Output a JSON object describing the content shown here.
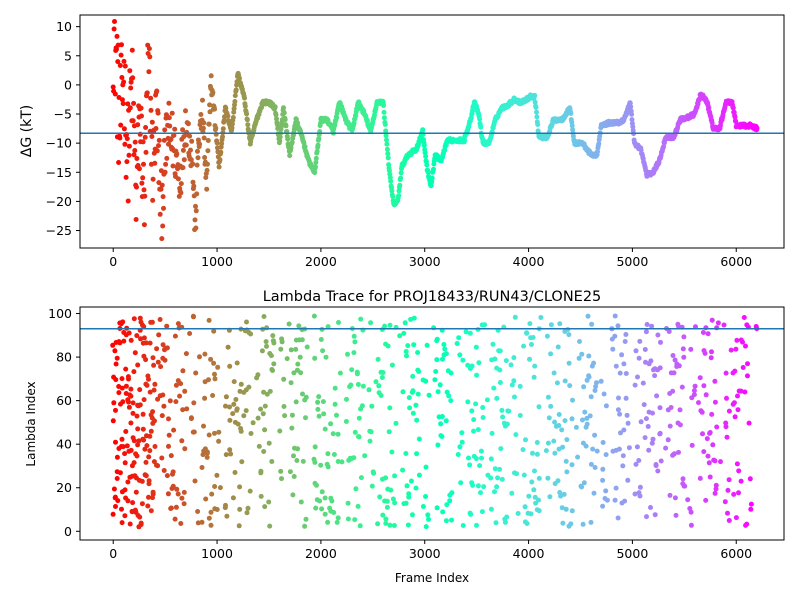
{
  "chart_data": [
    {
      "type": "scatter",
      "title": "",
      "xlabel": "",
      "ylabel": "ΔG (kT)",
      "xlim": [
        -320,
        6460
      ],
      "ylim": [
        -28,
        12
      ],
      "xticks": [
        0,
        1000,
        2000,
        3000,
        4000,
        5000,
        6000
      ],
      "yticks": [
        10,
        5,
        0,
        -5,
        -10,
        -15,
        -20,
        -25
      ],
      "colormap": "rainbow (frame index, reversed: red = early, violet = late)",
      "hline": {
        "y": -8.3,
        "color": "#1f77b4"
      },
      "grid": false,
      "x_range": [
        0,
        6200
      ],
      "marker_size": 5,
      "trace": [
        [
          0,
          10
        ],
        [
          30,
          5
        ],
        [
          60,
          -8
        ],
        [
          100,
          2
        ],
        [
          140,
          -12
        ],
        [
          180,
          0
        ],
        [
          220,
          -18
        ],
        [
          260,
          -6
        ],
        [
          300,
          -20
        ],
        [
          340,
          6
        ],
        [
          380,
          -14
        ],
        [
          420,
          -4
        ],
        [
          460,
          -22
        ],
        [
          520,
          -8
        ],
        [
          580,
          -10
        ],
        [
          640,
          -16
        ],
        [
          700,
          -6
        ],
        [
          760,
          -12
        ],
        [
          790,
          -25
        ],
        [
          820,
          -10
        ],
        [
          860,
          -5
        ],
        [
          900,
          -18
        ],
        [
          940,
          1
        ],
        [
          980,
          -6
        ],
        [
          1020,
          -14
        ],
        [
          1080,
          -4
        ],
        [
          1140,
          -8
        ],
        [
          1200,
          2
        ],
        [
          1260,
          -2
        ],
        [
          1320,
          -10
        ],
        [
          1380,
          -6
        ],
        [
          1440,
          -3
        ],
        [
          1500,
          -3
        ],
        [
          1560,
          -4
        ],
        [
          1600,
          -10
        ],
        [
          1640,
          -4
        ],
        [
          1700,
          -12
        ],
        [
          1760,
          -6
        ],
        [
          1820,
          -9
        ],
        [
          1880,
          -13
        ],
        [
          1940,
          -15
        ],
        [
          2000,
          -6
        ],
        [
          2060,
          -6
        ],
        [
          2120,
          -8
        ],
        [
          2180,
          -3
        ],
        [
          2240,
          -6
        ],
        [
          2300,
          -8
        ],
        [
          2360,
          -3
        ],
        [
          2420,
          -5
        ],
        [
          2480,
          -8
        ],
        [
          2540,
          -3
        ],
        [
          2600,
          -3
        ],
        [
          2660,
          -15
        ],
        [
          2700,
          -20.5
        ],
        [
          2740,
          -20
        ],
        [
          2780,
          -14
        ],
        [
          2840,
          -12
        ],
        [
          2920,
          -11
        ],
        [
          2980,
          -8
        ],
        [
          3020,
          -14
        ],
        [
          3060,
          -17.5
        ],
        [
          3100,
          -12
        ],
        [
          3160,
          -13
        ],
        [
          3220,
          -9.5
        ],
        [
          3300,
          -9.5
        ],
        [
          3380,
          -9.5
        ],
        [
          3440,
          -6
        ],
        [
          3480,
          -3
        ],
        [
          3520,
          -5
        ],
        [
          3560,
          -10
        ],
        [
          3620,
          -10
        ],
        [
          3680,
          -6
        ],
        [
          3740,
          -4
        ],
        [
          3800,
          -3.5
        ],
        [
          3860,
          -2.5
        ],
        [
          3920,
          -3
        ],
        [
          3980,
          -2.5
        ],
        [
          4020,
          -2
        ],
        [
          4060,
          -2
        ],
        [
          4100,
          -9
        ],
        [
          4180,
          -9
        ],
        [
          4240,
          -6
        ],
        [
          4320,
          -6
        ],
        [
          4400,
          -4
        ],
        [
          4440,
          -10
        ],
        [
          4520,
          -10
        ],
        [
          4600,
          -12
        ],
        [
          4660,
          -12
        ],
        [
          4700,
          -7
        ],
        [
          4780,
          -6.5
        ],
        [
          4860,
          -6.5
        ],
        [
          4920,
          -6
        ],
        [
          4980,
          -3
        ],
        [
          5020,
          -10
        ],
        [
          5080,
          -11
        ],
        [
          5140,
          -15.5
        ],
        [
          5200,
          -15
        ],
        [
          5260,
          -13
        ],
        [
          5320,
          -9
        ],
        [
          5400,
          -9
        ],
        [
          5460,
          -6
        ],
        [
          5540,
          -5.5
        ],
        [
          5600,
          -5
        ],
        [
          5660,
          -1.5
        ],
        [
          5720,
          -3
        ],
        [
          5780,
          -7.5
        ],
        [
          5840,
          -7.5
        ],
        [
          5900,
          -3
        ],
        [
          5960,
          -3
        ],
        [
          6000,
          -7
        ],
        [
          6080,
          -7
        ],
        [
          6140,
          -7
        ],
        [
          6200,
          -7.5
        ]
      ]
    },
    {
      "type": "scatter",
      "title": "Lambda Trace for PROJ18433/RUN43/CLONE25",
      "xlabel": "Frame Index",
      "ylabel": "Lambda Index",
      "xlim": [
        -320,
        6460
      ],
      "ylim": [
        -4,
        103
      ],
      "xticks": [
        0,
        1000,
        2000,
        3000,
        4000,
        5000,
        6000
      ],
      "yticks": [
        0,
        20,
        40,
        60,
        80,
        100
      ],
      "colormap": "rainbow (frame index, reversed: red = early, violet = late)",
      "hline": {
        "y": 93,
        "color": "#1f77b4"
      },
      "grid": false,
      "x_range": [
        0,
        6200
      ],
      "y_range": [
        2,
        99
      ],
      "marker_size": 5
    }
  ]
}
